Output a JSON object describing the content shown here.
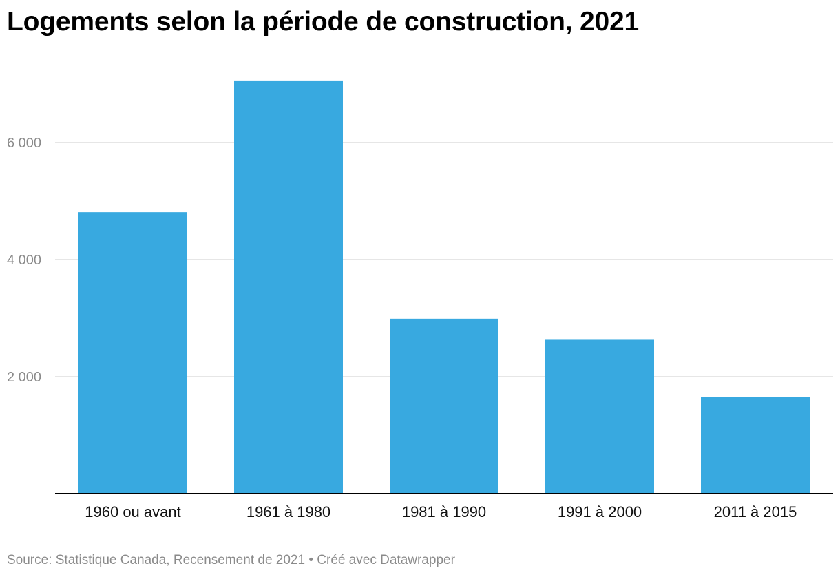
{
  "title": "Logements selon la période de construction, 2021",
  "footer": {
    "source": "Source: Statistique Canada, Recensement de 2021",
    "separator": " • ",
    "credit": "Créé avec Datawrapper"
  },
  "colors": {
    "bar": "#38a9e0",
    "grid": "#dddddd",
    "axis": "#000000",
    "tick_text": "#8a8a8a",
    "label_text": "#111111"
  },
  "chart_data": {
    "type": "bar",
    "title": "Logements selon la période de construction, 2021",
    "categories": [
      "1960 ou avant",
      "1961 à 1980",
      "1981 à 1990",
      "1991 à 2000",
      "2011 à 2015"
    ],
    "values": [
      4810,
      7060,
      2990,
      2630,
      1650
    ],
    "y_ticks": [
      2000,
      4000,
      6000
    ],
    "y_tick_labels": [
      "2 000",
      "4 000",
      "6 000"
    ],
    "ylim": [
      0,
      7060
    ],
    "grid": true,
    "xlabel": "",
    "ylabel": ""
  }
}
